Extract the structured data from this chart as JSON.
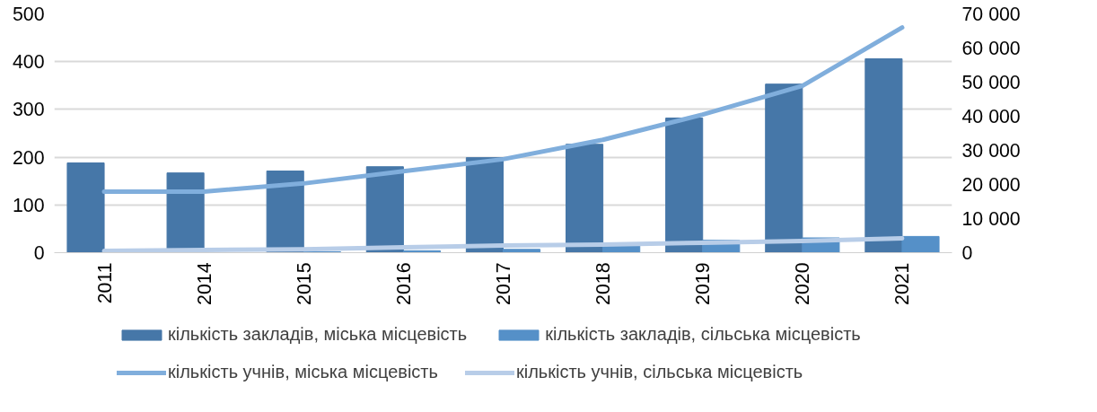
{
  "chart_data": {
    "type": "bar",
    "categories": [
      "2011",
      "2014",
      "2015",
      "2016",
      "2017",
      "2018",
      "2019",
      "2020",
      "2021"
    ],
    "series": [
      {
        "name": "кількість закладів, міська місцевість",
        "color": "#4677a8",
        "values": [
          188,
          167,
          171,
          180,
          199,
          227,
          282,
          353,
          406
        ]
      },
      {
        "name": "кількість закладів, сільська місцевість",
        "color": "#5590c8",
        "values": [
          0,
          null,
          2,
          4,
          7,
          15,
          26,
          31,
          34
        ]
      },
      {
        "name": "кількість учнів, міська місцевість",
        "type": "line",
        "axis": "y2",
        "color": "#80aedc",
        "values": [
          17900,
          17900,
          20300,
          23900,
          27400,
          33100,
          40500,
          48900,
          66000
        ]
      },
      {
        "name": "кількість учнів, сільська місцевість",
        "type": "line",
        "axis": "y2",
        "color": "#b8cde8",
        "values": [
          500,
          800,
          1000,
          1600,
          2100,
          2400,
          2900,
          3400,
          4200
        ]
      }
    ],
    "ylim": [
      0,
      500
    ],
    "yticks": [
      0,
      100,
      200,
      300,
      400,
      500
    ],
    "y2lim": [
      0,
      70000
    ],
    "y2ticks": [
      0,
      {
        "value": 10000,
        "label": "10 000"
      },
      {
        "value": 20000,
        "label": "20 000"
      },
      {
        "value": 30000,
        "label": "30 000"
      },
      {
        "value": 40000,
        "label": "40 000"
      },
      {
        "value": 50000,
        "label": "50 000"
      },
      {
        "value": 60000,
        "label": "60 000"
      },
      {
        "value": 70000,
        "label": "70 000"
      }
    ],
    "grid": "y",
    "legend": "bottom"
  }
}
